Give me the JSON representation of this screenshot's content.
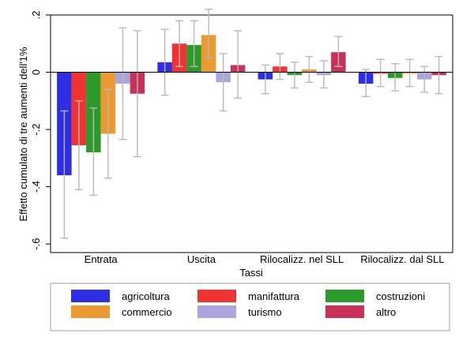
{
  "chart_data": {
    "type": "bar",
    "xlabel": "Tassi",
    "ylabel": "Effetto cumulato di tre aumenti dell'1%",
    "ylim": [
      -0.63,
      0.2
    ],
    "yticks": [
      0.2,
      0,
      -0.2,
      -0.4,
      -0.6
    ],
    "ytick_labels": [
      ".2",
      "0",
      "-.2",
      "-.4",
      "-.6"
    ],
    "categories": [
      "Entrata",
      "Uscita",
      "Rilocalizz. nel SLL",
      "Rilocalizz. dal SLL"
    ],
    "error_bars": true,
    "grid": false,
    "legend_position": "bottom",
    "series": [
      {
        "name": "agricoltura",
        "color": "#2e2ee6",
        "values": [
          -0.36,
          0.035,
          -0.025,
          -0.04
        ],
        "lower": [
          -0.58,
          -0.08,
          -0.075,
          -0.085
        ],
        "upper": [
          -0.135,
          0.15,
          0.025,
          0.01
        ]
      },
      {
        "name": "manifattura",
        "color": "#f03232",
        "values": [
          -0.255,
          0.1,
          0.02,
          -0.005
        ],
        "lower": [
          -0.41,
          0.02,
          -0.025,
          -0.05
        ],
        "upper": [
          -0.1,
          0.18,
          0.065,
          0.045
        ]
      },
      {
        "name": "costruzioni",
        "color": "#2a9a2a",
        "values": [
          -0.28,
          0.095,
          -0.01,
          -0.02
        ],
        "lower": [
          -0.43,
          0.02,
          -0.055,
          -0.065
        ],
        "upper": [
          -0.125,
          0.18,
          0.035,
          0.03
        ]
      },
      {
        "name": "commercio",
        "color": "#eb9a32",
        "values": [
          -0.215,
          0.13,
          0.01,
          -0.005
        ],
        "lower": [
          -0.37,
          0.05,
          -0.035,
          -0.05
        ],
        "upper": [
          -0.06,
          0.22,
          0.055,
          0.045
        ]
      },
      {
        "name": "turismo",
        "color": "#aaa6dd",
        "values": [
          -0.04,
          -0.035,
          -0.01,
          -0.025
        ],
        "lower": [
          -0.235,
          -0.135,
          -0.055,
          -0.07
        ],
        "upper": [
          0.155,
          0.065,
          0.04,
          0.02
        ]
      },
      {
        "name": "altro",
        "color": "#c8325a",
        "values": [
          -0.075,
          0.025,
          0.07,
          -0.01
        ],
        "lower": [
          -0.295,
          -0.09,
          0.02,
          -0.075
        ],
        "upper": [
          0.145,
          0.145,
          0.125,
          0.055
        ]
      }
    ]
  }
}
